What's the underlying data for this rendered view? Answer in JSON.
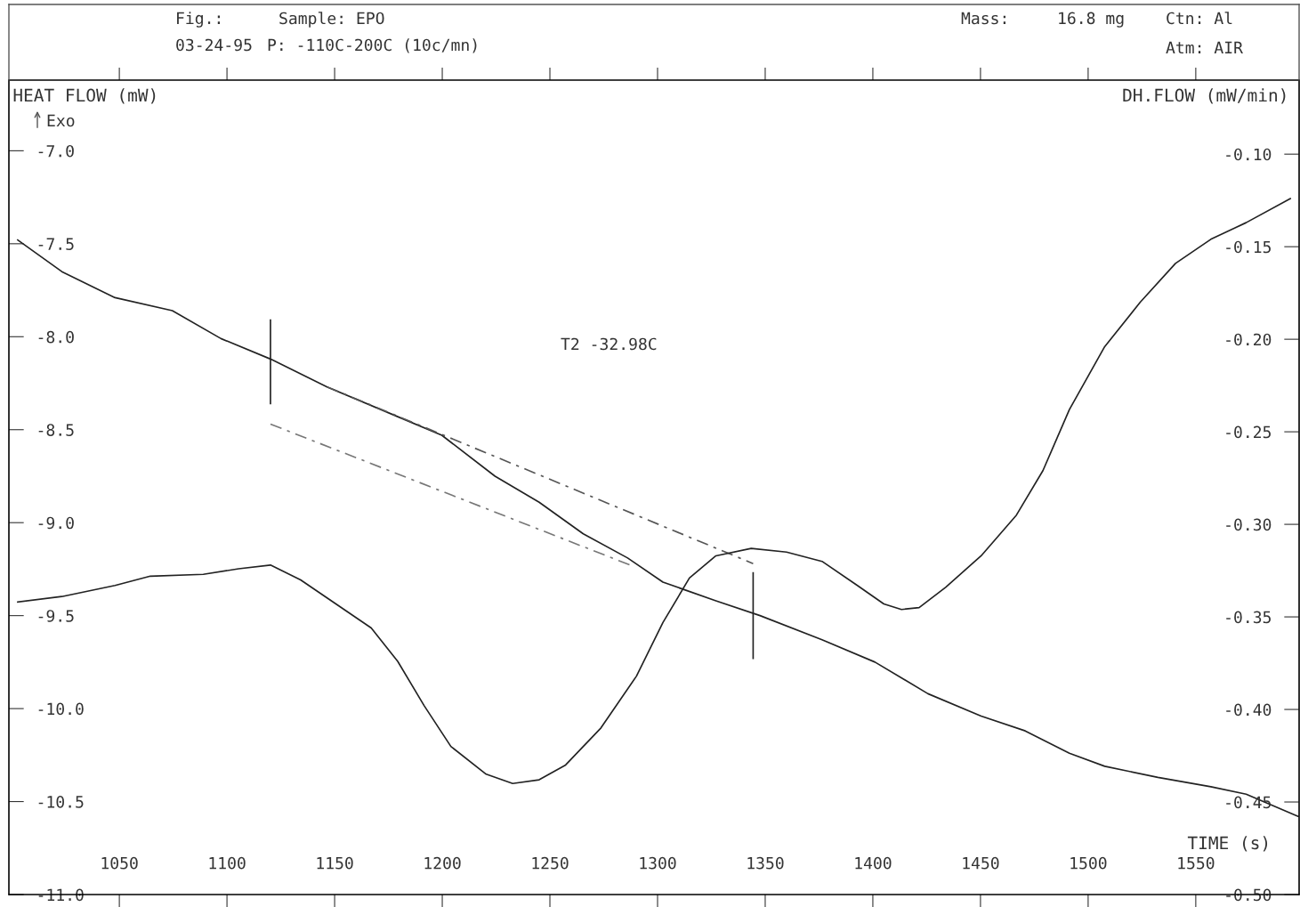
{
  "chart_data": {
    "type": "line",
    "xlabel": "TIME (s)",
    "ylabel": "HEAT FLOW (mW)",
    "y2label": "DH.FLOW (mW/min)",
    "annotations": [
      "Fig.:",
      "03-24-95",
      "Sample: EPO",
      "P: -110C-200C (10c/mn)",
      "Mass:",
      "16.8 mg",
      "Ctn: Al",
      "Atm: AIR",
      "Exo",
      "T2 -32.98C"
    ],
    "xlim": [
      998.7,
      1598.0
    ],
    "xticks": [
      1050,
      1100,
      1150,
      1200,
      1250,
      1300,
      1350,
      1400,
      1450,
      1500,
      1550
    ],
    "ylim": [
      -11.0,
      -6.62
    ],
    "yticks": [
      {
        "value": -11,
        "label": "-11.0"
      },
      -10.5,
      {
        "value": -10,
        "label": "-10.0"
      },
      -9.5,
      {
        "value": -9,
        "label": "-9.0"
      },
      -8.5,
      {
        "value": -8,
        "label": "-8.0"
      },
      -7.5,
      {
        "value": -7,
        "label": "-7.0"
      }
    ],
    "y2lim": [
      -0.5,
      -0.06
    ],
    "y2ticks": [
      {
        "value": -0.5,
        "label": "-0.50"
      },
      {
        "value": -0.45,
        "label": "-0.45"
      },
      {
        "value": -0.4,
        "label": "-0.40"
      },
      {
        "value": -0.35,
        "label": "-0.35"
      },
      {
        "value": -0.3,
        "label": "-0.30"
      },
      {
        "value": -0.25,
        "label": "-0.25"
      },
      {
        "value": -0.2,
        "label": "-0.20"
      },
      {
        "value": -0.15,
        "label": "-0.15"
      },
      {
        "value": -0.1,
        "label": "-0.10"
      }
    ],
    "grid": false,
    "marker": "none",
    "series": [
      {
        "color": "#222222",
        "line_style": "solid",
        "x": [
          1002.8,
          1023.3,
          1048.0,
          1074.6,
          1097.2,
          1120.2,
          1146.5,
          1179.3,
          1199.8,
          1224.5,
          1245.0,
          1265.5,
          1286.1,
          1302.5,
          1327.1,
          1347.6,
          1376.4,
          1401.0,
          1425.6,
          1450.3,
          1470.8,
          1491.3,
          1507.7,
          1532.4,
          1557.0,
          1573.4,
          1597.5
        ],
        "values": [
          -7.48,
          -7.65,
          -7.79,
          -7.86,
          -8.01,
          -8.12,
          -8.27,
          -8.43,
          -8.53,
          -8.75,
          -8.89,
          -9.06,
          -9.19,
          -9.32,
          -9.42,
          -9.5,
          -9.63,
          -9.75,
          -9.92,
          -10.04,
          -10.12,
          -10.24,
          -10.31,
          -10.37,
          -10.42,
          -10.46,
          -10.58
        ]
      },
      {
        "color": "#222222",
        "line_style": "solid",
        "axis": "y2",
        "x": [
          1002.8,
          1023.3,
          1048.0,
          1064.4,
          1089.0,
          1105.4,
          1120.2,
          1134.2,
          1150.6,
          1167.0,
          1179.3,
          1191.6,
          1204.0,
          1220.4,
          1232.7,
          1245.0,
          1257.3,
          1273.7,
          1290.2,
          1302.5,
          1314.8,
          1327.1,
          1343.5,
          1359.9,
          1376.4,
          1392.8,
          1405.1,
          1413.3,
          1421.5,
          1433.8,
          1450.3,
          1466.7,
          1479.0,
          1491.3,
          1507.7,
          1524.2,
          1540.6,
          1557.0,
          1573.4,
          1593.9
        ],
        "values": [
          -0.342,
          -0.339,
          -0.333,
          -0.328,
          -0.327,
          -0.324,
          -0.322,
          -0.33,
          -0.343,
          -0.356,
          -0.374,
          -0.398,
          -0.42,
          -0.435,
          -0.44,
          -0.438,
          -0.43,
          -0.41,
          -0.382,
          -0.353,
          -0.329,
          -0.317,
          -0.313,
          -0.315,
          -0.32,
          -0.333,
          -0.343,
          -0.346,
          -0.345,
          -0.334,
          -0.317,
          -0.295,
          -0.271,
          -0.238,
          -0.204,
          -0.18,
          -0.159,
          -0.146,
          -0.137,
          -0.124
        ]
      },
      {
        "color": "#555555",
        "line_style": "dashed",
        "x": [
          1146.5,
          1344.4
        ],
        "values": [
          -8.27,
          -9.22
        ]
      },
      {
        "color": "#777777",
        "line_style": "dashed",
        "x": [
          1120.2,
          1287.7
        ],
        "values": [
          -8.47,
          -9.23
        ]
      },
      {
        "color": "#222222",
        "line_style": "solid",
        "x": [
          1120.2,
          1120.2
        ],
        "values": [
          -7.91,
          -8.36
        ]
      },
      {
        "color": "#222222",
        "line_style": "solid",
        "x": [
          1344.4,
          1344.4
        ],
        "values": [
          -9.27,
          -9.73
        ]
      }
    ]
  }
}
